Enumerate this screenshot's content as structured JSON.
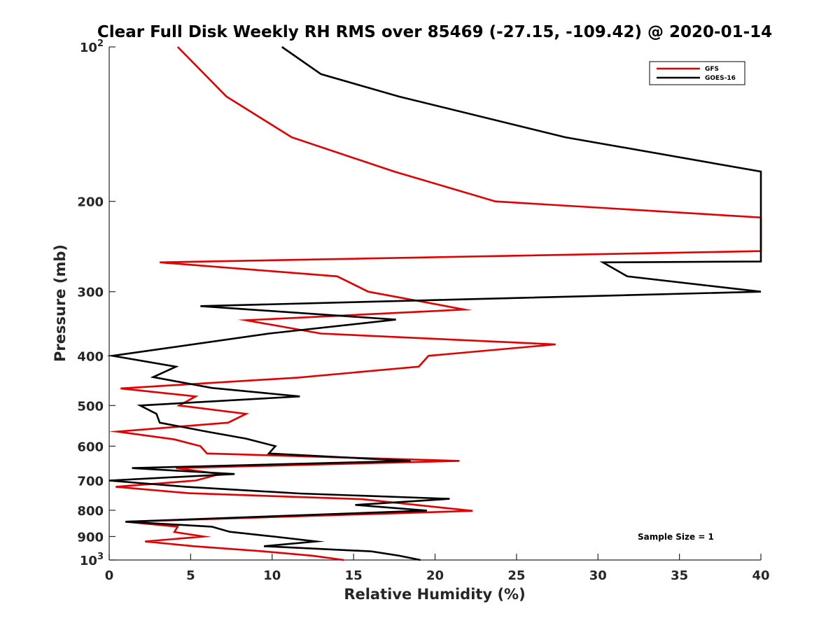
{
  "chart_data": {
    "type": "line",
    "title": "Clear Full Disk Weekly RH RMS over 85469 (-27.15, -109.42) @ 2020-01-14",
    "xlabel": "Relative Humidity (%)",
    "ylabel": "Pressure (mb)",
    "xlim": [
      0,
      40
    ],
    "ylim": [
      100,
      1000
    ],
    "y_scale": "log",
    "y_reversed": true,
    "grid": false,
    "legend_position": "top-right",
    "x_ticks": [
      0,
      5,
      10,
      15,
      20,
      25,
      30,
      35,
      40
    ],
    "x_tick_labels": [
      "0",
      "5",
      "10",
      "15",
      "20",
      "25",
      "30",
      "35",
      "40"
    ],
    "y_ticks": [
      100,
      200,
      300,
      400,
      500,
      600,
      700,
      800,
      900,
      1000
    ],
    "y_tick_labels": [
      "10^2",
      "200",
      "300",
      "400",
      "500",
      "600",
      "700",
      "800",
      "900",
      "10^3"
    ],
    "annotation": "Sample Size = 1",
    "series": [
      {
        "name": "GFS",
        "color": "#e00000",
        "points": [
          [
            4.2,
            100
          ],
          [
            7.2,
            125
          ],
          [
            11.2,
            150
          ],
          [
            17.5,
            175
          ],
          [
            23.7,
            200
          ],
          [
            40,
            215
          ],
          [
            40,
            250
          ],
          [
            3.1,
            263
          ],
          [
            14,
            280
          ],
          [
            15.9,
            300
          ],
          [
            21.8,
            325
          ],
          [
            8.4,
            341
          ],
          [
            13,
            362
          ],
          [
            27.4,
            380
          ],
          [
            19.6,
            400
          ],
          [
            19,
            420
          ],
          [
            11.6,
            441
          ],
          [
            0.7,
            463
          ],
          [
            5.3,
            480
          ],
          [
            4.3,
            500
          ],
          [
            8.4,
            519
          ],
          [
            7.3,
            540
          ],
          [
            0.5,
            562
          ],
          [
            4,
            582
          ],
          [
            5.6,
            600
          ],
          [
            6,
            620
          ],
          [
            21.5,
            641
          ],
          [
            4.1,
            662
          ],
          [
            6.8,
            680
          ],
          [
            5.3,
            700
          ],
          [
            0.4,
            720
          ],
          [
            4.9,
            741
          ],
          [
            15.5,
            761
          ],
          [
            22.3,
            802
          ],
          [
            1,
            842
          ],
          [
            4.2,
            861
          ],
          [
            4,
            882
          ],
          [
            5.8,
            900
          ],
          [
            2.2,
            920
          ],
          [
            5.2,
            940
          ],
          [
            9.5,
            962
          ],
          [
            12.5,
            981
          ],
          [
            14.4,
            1000
          ]
        ]
      },
      {
        "name": "GOES-16",
        "color": "#000000",
        "points": [
          [
            10.6,
            100
          ],
          [
            13,
            113
          ],
          [
            17.8,
            125
          ],
          [
            28,
            150
          ],
          [
            40,
            175
          ],
          [
            40,
            262
          ],
          [
            30.3,
            263
          ],
          [
            31.8,
            280
          ],
          [
            40,
            300
          ],
          [
            5.6,
            320
          ],
          [
            17.6,
            340
          ],
          [
            9.8,
            362
          ],
          [
            0.2,
            400
          ],
          [
            4.1,
            420
          ],
          [
            2.7,
            440
          ],
          [
            6.3,
            462
          ],
          [
            11.7,
            480
          ],
          [
            1.9,
            500
          ],
          [
            2.9,
            519
          ],
          [
            3.1,
            540
          ],
          [
            6,
            562
          ],
          [
            8.4,
            580
          ],
          [
            10.2,
            600
          ],
          [
            9.8,
            620
          ],
          [
            18.5,
            641
          ],
          [
            1.4,
            662
          ],
          [
            7.7,
            680
          ],
          [
            0,
            700
          ],
          [
            4.7,
            720
          ],
          [
            11.7,
            742
          ],
          [
            20.9,
            760
          ],
          [
            15.1,
            781
          ],
          [
            19.5,
            801
          ],
          [
            1,
            842
          ],
          [
            6.3,
            861
          ],
          [
            7.4,
            881
          ],
          [
            10.1,
            900
          ],
          [
            12.7,
            920
          ],
          [
            9.5,
            940
          ],
          [
            16.1,
            962
          ],
          [
            17.8,
            981
          ],
          [
            19.1,
            1000
          ]
        ]
      }
    ]
  }
}
